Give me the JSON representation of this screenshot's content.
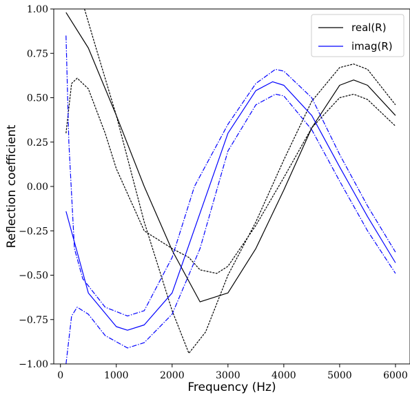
{
  "chart_data": {
    "type": "line",
    "xlabel": "Frequency (Hz)",
    "ylabel": "Reflection coefficient",
    "xlim": [
      -120,
      6260
    ],
    "ylim": [
      -1.0,
      1.0
    ],
    "xticks": [
      0,
      1000,
      2000,
      3000,
      4000,
      5000,
      6000
    ],
    "xtick_labels": [
      "0",
      "1000",
      "2000",
      "3000",
      "4000",
      "5000",
      "6000"
    ],
    "yticks": [
      -1.0,
      -0.75,
      -0.5,
      -0.25,
      0.0,
      0.25,
      0.5,
      0.75,
      1.0
    ],
    "ytick_labels": [
      "−1.00",
      "−0.75",
      "−0.50",
      "−0.25",
      "0.00",
      "0.25",
      "0.50",
      "0.75",
      "1.00"
    ],
    "grid": false,
    "legend_position": "top-right",
    "legend": [
      {
        "label": "real(R)",
        "color": "#000000"
      },
      {
        "label": "imag(R)",
        "color": "#0000ff"
      }
    ],
    "series": [
      {
        "name": "real(R)",
        "color": "#000000",
        "style": "solid",
        "x": [
          100,
          500,
          1000,
          1500,
          2000,
          2500,
          3000,
          3500,
          4000,
          4500,
          5000,
          5250,
          5500,
          6000
        ],
        "y": [
          0.98,
          0.78,
          0.4,
          0.0,
          -0.36,
          -0.65,
          -0.6,
          -0.35,
          -0.02,
          0.33,
          0.57,
          0.6,
          0.57,
          0.4
        ]
      },
      {
        "name": "",
        "color": "#000000",
        "style": "dashed",
        "x": [
          100,
          200,
          300,
          500,
          800,
          1000,
          1500,
          2000,
          2300,
          2500,
          2800,
          3000,
          3500,
          4000,
          4500,
          5000,
          5250,
          5500,
          6000
        ],
        "y": [
          0.3,
          0.58,
          0.61,
          0.55,
          0.3,
          0.1,
          -0.25,
          -0.35,
          -0.4,
          -0.47,
          -0.49,
          -0.45,
          -0.22,
          0.05,
          0.33,
          0.5,
          0.52,
          0.49,
          0.34
        ]
      },
      {
        "name": "",
        "color": "#000000",
        "style": "dashed",
        "x": [
          430,
          600,
          1000,
          1500,
          2000,
          2300,
          2600,
          3000,
          3500,
          4000,
          4500,
          5000,
          5250,
          5500,
          6000
        ],
        "y": [
          1.0,
          0.82,
          0.4,
          -0.2,
          -0.7,
          -0.94,
          -0.82,
          -0.5,
          -0.2,
          0.15,
          0.48,
          0.67,
          0.69,
          0.66,
          0.46
        ]
      },
      {
        "name": "imag(R)",
        "color": "#0000ff",
        "style": "solid",
        "x": [
          100,
          500,
          1000,
          1200,
          1500,
          2000,
          2500,
          3000,
          3500,
          3800,
          4000,
          4500,
          5000,
          5500,
          6000
        ],
        "y": [
          -0.14,
          -0.6,
          -0.79,
          -0.81,
          -0.78,
          -0.6,
          -0.15,
          0.3,
          0.54,
          0.59,
          0.57,
          0.4,
          0.11,
          -0.17,
          -0.43
        ]
      },
      {
        "name": "",
        "color": "#0000ff",
        "style": "dashdot",
        "x": [
          100,
          150,
          250,
          400,
          800,
          1200,
          1500,
          2000,
          2400,
          3000,
          3500,
          3850,
          4000,
          4500,
          5000,
          5500,
          6000
        ],
        "y": [
          0.85,
          0.25,
          -0.35,
          -0.52,
          -0.68,
          -0.73,
          -0.7,
          -0.4,
          0.0,
          0.35,
          0.58,
          0.66,
          0.65,
          0.5,
          0.18,
          -0.11,
          -0.37
        ]
      },
      {
        "name": "",
        "color": "#0000ff",
        "style": "dashdot",
        "x": [
          100,
          200,
          300,
          500,
          800,
          1200,
          1500,
          2000,
          2500,
          3000,
          3500,
          3850,
          4000,
          4500,
          5000,
          5500,
          6000
        ],
        "y": [
          -1.0,
          -0.73,
          -0.68,
          -0.72,
          -0.84,
          -0.91,
          -0.88,
          -0.72,
          -0.35,
          0.2,
          0.46,
          0.52,
          0.51,
          0.32,
          0.03,
          -0.25,
          -0.49
        ]
      }
    ]
  }
}
